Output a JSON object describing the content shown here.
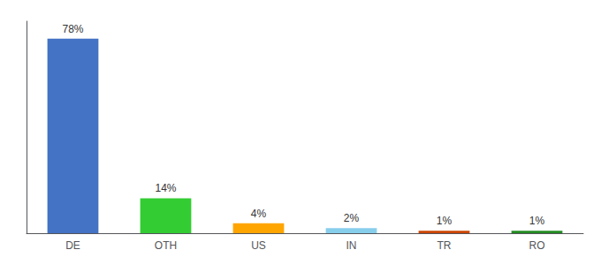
{
  "chart_data": {
    "type": "bar",
    "categories": [
      "DE",
      "OTH",
      "US",
      "IN",
      "TR",
      "RO"
    ],
    "values": [
      78,
      14,
      4,
      2,
      1,
      1
    ],
    "value_labels": [
      "78%",
      "14%",
      "4%",
      "2%",
      "1%",
      "1%"
    ],
    "colors": [
      "#4472C4",
      "#33CC33",
      "#FFA500",
      "#87CEEB",
      "#CC4400",
      "#228B22"
    ],
    "ylim": [
      0,
      85
    ],
    "grid": false,
    "data_labels": true,
    "tick_labels": "x"
  }
}
